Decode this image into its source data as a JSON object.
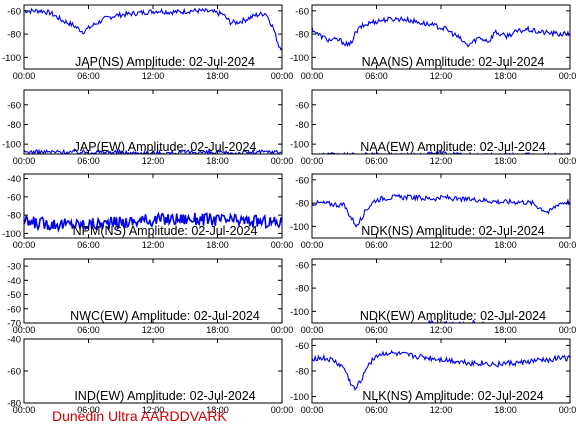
{
  "figure": {
    "footer": "Dunedin Ultra AARDDVARK"
  },
  "chart_data": [
    {
      "type": "line",
      "title": "JAP(NS) Amplitude: 02-Jul-2024",
      "ylim": [
        -110,
        -55
      ],
      "yticks": [
        -100,
        -80,
        -60
      ],
      "xticks": [
        "00:00",
        "06:00",
        "12:00",
        "18:00",
        "00:00"
      ],
      "series": [
        {
          "x_hours": [
            0,
            0.8,
            1.6,
            2.5,
            3.5,
            4.5,
            5.5,
            6.5,
            7.5,
            8.5,
            9.5,
            10.5,
            11.5,
            12.5,
            13.5,
            14.5,
            15.5,
            16.5,
            17.5,
            18.5,
            19.2,
            19.8,
            20.5,
            21.5,
            22.5,
            23.2,
            23.7,
            24
          ],
          "y": [
            -60,
            -60,
            -60,
            -62,
            -68,
            -72,
            -78,
            -72,
            -67,
            -64,
            -63,
            -62,
            -61,
            -60,
            -61,
            -61,
            -60,
            -60,
            -61,
            -63,
            -70,
            -70,
            -68,
            -64,
            -62,
            -75,
            -90,
            -92
          ]
        }
      ]
    },
    {
      "type": "line",
      "title": "NAA(NS) Amplitude: 02-Jul-2024",
      "ylim": [
        -110,
        -55
      ],
      "yticks": [
        -100,
        -80,
        -60
      ],
      "xticks": [
        "00:00",
        "06:00",
        "12:00",
        "18:00",
        "00:00"
      ],
      "series": [
        {
          "x_hours": [
            0,
            0.5,
            1.5,
            2.5,
            3.5,
            4.0,
            4.5,
            5.5,
            6.5,
            7.5,
            8.5,
            9.5,
            10.5,
            11.5,
            12.5,
            13.5,
            14.5,
            15.5,
            16.5,
            17.0,
            18.0,
            19.0,
            20.0,
            21.0,
            22.0,
            23.0,
            24
          ],
          "y": [
            -75,
            -80,
            -85,
            -85,
            -90,
            -80,
            -74,
            -70,
            -68,
            -67,
            -67,
            -69,
            -71,
            -73,
            -76,
            -82,
            -90,
            -83,
            -86,
            -78,
            -82,
            -78,
            -76,
            -78,
            -79,
            -80,
            -80
          ]
        }
      ]
    },
    {
      "type": "line",
      "title": "JAP(EW) Amplitude: 02-Jul-2024",
      "ylim": [
        -110,
        -45
      ],
      "yticks": [
        -100,
        -80,
        -60
      ],
      "xticks": [
        "00:00",
        "06:00",
        "12:00",
        "18:00",
        "00:00"
      ],
      "series": [
        {
          "x_hours": [
            0,
            2,
            4,
            6,
            8,
            10,
            12,
            14,
            16,
            18,
            20,
            22,
            24
          ],
          "y": [
            -108,
            -108,
            -108,
            -108,
            -108,
            -109,
            -109,
            -109,
            -108,
            -109,
            -109,
            -108,
            -108
          ]
        }
      ]
    },
    {
      "type": "line",
      "title": "NAA(EW) Amplitude: 02-Jul-2024",
      "ylim": [
        -110,
        -45
      ],
      "yticks": [
        -100,
        -80,
        -60
      ],
      "xticks": [
        "00:00",
        "06:00",
        "12:00",
        "18:00",
        "00:00"
      ],
      "series": [
        {
          "x_hours": [
            0,
            2,
            4,
            6,
            8,
            10,
            12,
            14,
            16,
            18,
            20,
            22,
            24
          ],
          "y": [
            -111,
            -111,
            -111,
            -111,
            -111,
            -111,
            -109,
            -111,
            -111,
            -111,
            -111,
            -111,
            -111
          ]
        }
      ]
    },
    {
      "type": "line",
      "title": "NPM(NS) Amplitude: 02-Jul-2024",
      "ylim": [
        -105,
        -35
      ],
      "yticks": [
        -100,
        -80,
        -60,
        -40
      ],
      "xticks": [
        "00:00",
        "06:00",
        "12:00",
        "18:00",
        "00:00"
      ],
      "series": [
        {
          "x_hours": [
            0,
            2,
            4,
            6,
            8,
            10,
            12,
            14,
            16,
            18,
            20,
            22,
            24
          ],
          "y": [
            -88,
            -89,
            -90,
            -90,
            -89,
            -87,
            -85,
            -84,
            -84,
            -85,
            -86,
            -87,
            -88
          ]
        }
      ]
    },
    {
      "type": "line",
      "title": "NDK(NS) Amplitude: 02-Jul-2024",
      "ylim": [
        -110,
        -55
      ],
      "yticks": [
        -100,
        -80,
        -60
      ],
      "xticks": [
        "00:00",
        "06:00",
        "12:00",
        "18:00",
        "00:00"
      ],
      "series": [
        {
          "x_hours": [
            0,
            1,
            2,
            3,
            3.6,
            4.2,
            5.0,
            5.8,
            6.5,
            7.5,
            8.5,
            9.5,
            10.5,
            11.5,
            12.5,
            13.5,
            14.5,
            15.5,
            16.5,
            17.5,
            18.5,
            19.5,
            20.5,
            21.0,
            22.0,
            23.0,
            24
          ],
          "y": [
            -80,
            -80,
            -81,
            -82,
            -92,
            -100,
            -86,
            -78,
            -76,
            -75,
            -75,
            -75,
            -76,
            -76,
            -75,
            -77,
            -77,
            -77,
            -78,
            -79,
            -79,
            -79,
            -80,
            -83,
            -88,
            -80,
            -79
          ]
        }
      ]
    },
    {
      "type": "line",
      "title": "NWC(EW) Amplitude: 02-Jul-2024",
      "ylim": [
        -70,
        -25
      ],
      "yticks": [
        -70,
        -60,
        -50,
        -40,
        -30
      ],
      "xticks": [
        "00:00",
        "06:00",
        "12:00",
        "18:00",
        "00:00"
      ],
      "series": []
    },
    {
      "type": "line",
      "title": "NDK(EW) Amplitude: 02-Jul-2024",
      "ylim": [
        -110,
        -55
      ],
      "yticks": [
        -100,
        -80,
        -60
      ],
      "xticks": [
        "00:00",
        "06:00",
        "12:00",
        "18:00",
        "00:00"
      ],
      "series": [
        {
          "x_hours": [
            10,
            11,
            12,
            13,
            14,
            15,
            16
          ],
          "y": [
            -111,
            -110,
            -110,
            -111,
            -111,
            -110,
            -111
          ]
        }
      ]
    },
    {
      "type": "line",
      "title": "IND(EW) Amplitude: 02-Jul-2024",
      "ylim": [
        -80,
        -40
      ],
      "yticks": [
        -80,
        -60,
        -40
      ],
      "xticks": [
        "00:00",
        "06:00",
        "12:00",
        "18:00",
        "00:00"
      ],
      "series": []
    },
    {
      "type": "line",
      "title": "NLK(NS) Amplitude: 02-Jul-2024",
      "ylim": [
        -105,
        -55
      ],
      "yticks": [
        -100,
        -80,
        -60
      ],
      "xticks": [
        "00:00",
        "06:00",
        "12:00",
        "18:00",
        "00:00"
      ],
      "series": [
        {
          "x_hours": [
            0,
            1,
            2,
            3,
            3.5,
            4.0,
            4.5,
            5.2,
            6.0,
            7.0,
            8.0,
            9.0,
            10.0,
            11.0,
            12.0,
            13.0,
            14.0,
            15.0,
            16.0,
            17.0,
            18.0,
            19.0,
            20.0,
            21.0,
            22.0,
            23.0,
            24
          ],
          "y": [
            -70,
            -70,
            -72,
            -78,
            -88,
            -95,
            -88,
            -75,
            -68,
            -66,
            -67,
            -68,
            -69,
            -70,
            -71,
            -72,
            -73,
            -74,
            -74,
            -75,
            -74,
            -74,
            -73,
            -72,
            -71,
            -70,
            -70
          ]
        }
      ]
    }
  ]
}
